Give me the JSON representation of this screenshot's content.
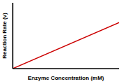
{
  "chart_data": {
    "type": "line",
    "x_label": "Enzyme Concentration (mM)",
    "y_label": "Reaction Rate (v)",
    "x": [
      0,
      10
    ],
    "values": [
      0,
      7
    ],
    "color": "#cc0000",
    "xlim": [
      0,
      10
    ],
    "ylim": [
      0,
      10
    ],
    "tick_labels": false,
    "grid": false
  }
}
